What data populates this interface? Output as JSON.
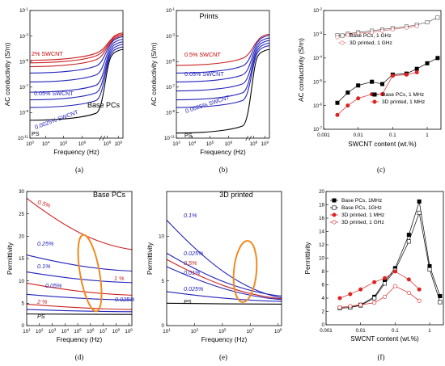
{
  "chart_data": [
    {
      "panel": "(a)",
      "type": "line",
      "title": "Base PCs",
      "xlabel": "Frequency (Hz)",
      "ylabel": "AC conductivity (S/m)",
      "x_ticks": [
        "10^3",
        "10^4",
        "10^5",
        "10^6",
        "10^8",
        "10^9"
      ],
      "y_ticks": [
        "10^-11",
        "10^-9",
        "10^-7",
        "10^-5",
        "10^-3",
        "10^-1"
      ],
      "annotations": [
        {
          "text": "2% SWCNT",
          "color": "#cc0000"
        },
        {
          "text": "0.05% SWCNT",
          "color": "#2222bb"
        },
        {
          "text": "0.0025% SWCNT",
          "color": "#2222bb"
        },
        {
          "text": "PS",
          "color": "#000000"
        }
      ],
      "series": [
        {
          "color": "#cc2222",
          "low": -4.9,
          "high": -2.8
        },
        {
          "color": "#cc2222",
          "low": -5.1,
          "high": -2.9
        },
        {
          "color": "#cc2222",
          "low": -5.4,
          "high": -3.0
        },
        {
          "color": "#2222bb",
          "low": -5.9,
          "high": -3.1
        },
        {
          "color": "#2222bb",
          "low": -6.6,
          "high": -3.3
        },
        {
          "color": "#2222bb",
          "low": -7.4,
          "high": -3.5
        },
        {
          "color": "#2222bb",
          "low": -8.0,
          "high": -3.7
        },
        {
          "color": "#2222bb",
          "low": -8.6,
          "high": -3.9
        },
        {
          "color": "#000000",
          "low": -9.6,
          "high": -4.1
        }
      ]
    },
    {
      "panel": "(b)",
      "type": "line",
      "title": "Prints",
      "xlabel": "Frequency (Hz)",
      "ylabel": "AC conductivity (S/m)",
      "x_ticks": [
        "10^3",
        "10^4",
        "10^5",
        "10^6",
        "10^8",
        "10^9"
      ],
      "y_ticks": [
        "10^-11",
        "10^-9",
        "10^-7",
        "10^-5",
        "10^-3",
        "10^-1"
      ],
      "annotations": [
        {
          "text": "0.5% SWCNT",
          "color": "#cc0000"
        },
        {
          "text": "0.05% SWCNT",
          "color": "#2222bb"
        },
        {
          "text": "0.0025% SWCNT",
          "color": "#2222bb"
        },
        {
          "text": "PS",
          "color": "#000000"
        }
      ],
      "series": [
        {
          "color": "#cc2222",
          "low": -5.3,
          "high": -2.9
        },
        {
          "color": "#2222bb",
          "low": -5.9,
          "high": -3.0
        },
        {
          "color": "#2222bb",
          "low": -6.6,
          "high": -3.2
        },
        {
          "color": "#2222bb",
          "low": -7.3,
          "high": -3.4
        },
        {
          "color": "#2222bb",
          "low": -8.0,
          "high": -3.6
        },
        {
          "color": "#2222bb",
          "low": -8.6,
          "high": -3.8
        },
        {
          "color": "#000000",
          "low": -10.6,
          "high": -4.1
        }
      ]
    },
    {
      "panel": "(c)",
      "type": "scatter",
      "xlabel": "SWCNT content (wt.%)",
      "ylabel": "AC conductivity (S/m)",
      "x_scale": "log",
      "y_scale": "log",
      "x_ticks": [
        "0.001",
        "0.01",
        "0.1",
        "1"
      ],
      "y_ticks": [
        "10^-7",
        "10^-6",
        "10^-5",
        "10^-4",
        "10^-3",
        "10^-2"
      ],
      "series": [
        {
          "name": "Base PCs, 1 GHz",
          "color": "#555555",
          "marker": "square-open",
          "x": [
            0.0025,
            0.005,
            0.01,
            0.025,
            0.05,
            0.1,
            0.25,
            0.5,
            1,
            2
          ],
          "y": [
            0.0009,
            0.00105,
            0.0012,
            0.0014,
            0.0016,
            0.0018,
            0.0021,
            0.0025,
            0.0032,
            0.005
          ]
        },
        {
          "name": "3D printed, 1 GHz",
          "color": "#e06666",
          "marker": "circle-open",
          "x": [
            0.0025,
            0.005,
            0.01,
            0.025,
            0.05,
            0.1,
            0.25,
            0.5
          ],
          "y": [
            0.00075,
            0.00095,
            0.0011,
            0.0012,
            0.0014,
            0.0016,
            0.0019,
            0.0022
          ]
        },
        {
          "name": "Base PCs, 1 MHz",
          "color": "#000000",
          "marker": "square",
          "x": [
            0.0025,
            0.005,
            0.01,
            0.025,
            0.05,
            0.1,
            0.25,
            0.5,
            1,
            2
          ],
          "y": [
            1.3e-06,
            3.5e-06,
            7e-06,
            1e-05,
            8e-06,
            2e-05,
            2.2e-05,
            3.5e-05,
            6e-05,
            0.0001
          ]
        },
        {
          "name": "3D printed, 1 MHz",
          "color": "#dd2222",
          "marker": "circle",
          "x": [
            0.0025,
            0.005,
            0.01,
            0.025,
            0.05,
            0.1,
            0.25,
            0.5
          ],
          "y": [
            4e-07,
            1e-06,
            2e-06,
            3e-06,
            3e-06,
            1.8e-05,
            2e-05,
            2.5e-05
          ]
        }
      ]
    },
    {
      "panel": "(d)",
      "type": "line",
      "title": "Base PCs",
      "xlabel": "Frequency (Hz)",
      "ylabel": "Permittivity",
      "ylim": [
        0,
        30
      ],
      "x_ticks": [
        "10^1",
        "10^2",
        "10^3",
        "10^4",
        "10^5",
        "10^6",
        "10^7",
        "10^8",
        "10^9"
      ],
      "y_ticks": [
        "0",
        "5",
        "10",
        "15",
        "20",
        "25",
        "30"
      ],
      "annotations": [
        {
          "text": "0.5%",
          "color": "#cc2222"
        },
        {
          "text": "0.25%",
          "color": "#2222bb"
        },
        {
          "text": "0.1%",
          "color": "#2222bb"
        },
        {
          "text": "1 %",
          "color": "#cc2222"
        },
        {
          "text": "0.05%",
          "color": "#2222bb"
        },
        {
          "text": "0.025%",
          "color": "#2222bb"
        },
        {
          "text": "2 %",
          "color": "#cc2222"
        },
        {
          "text": "PS",
          "color": "#000000"
        }
      ],
      "series": [
        {
          "color": "#cc2222",
          "start": 28.5,
          "end": 17
        },
        {
          "color": "#2222bb",
          "start": 15.8,
          "end": 12.2
        },
        {
          "color": "#2222bb",
          "start": 12.0,
          "end": 9.6
        },
        {
          "color": "#cc2222",
          "start": 9.5,
          "end": 6.8
        },
        {
          "color": "#2222bb",
          "start": 7.0,
          "end": 5.7
        },
        {
          "color": "#cc2222",
          "start": 4.8,
          "end": 3.6
        },
        {
          "color": "#2222bb",
          "start": 3.6,
          "end": 3.1
        },
        {
          "color": "#000000",
          "start": 2.6,
          "end": 2.5
        }
      ]
    },
    {
      "panel": "(e)",
      "type": "line",
      "title": "3D printed",
      "xlabel": "Frequency (Hz)",
      "ylabel": "Permittivity",
      "ylim": [
        0,
        15
      ],
      "x_ticks": [
        "10^1",
        "10^3",
        "10^5",
        "10^7",
        "10^9"
      ],
      "y_ticks": [
        "0",
        "5",
        "10"
      ],
      "annotations": [
        {
          "text": "0.1%",
          "color": "#2222bb"
        },
        {
          "text": "0.025%",
          "color": "#2222bb"
        },
        {
          "text": "0.5%",
          "color": "#cc2222"
        },
        {
          "text": "0.01%",
          "color": "#2222bb"
        },
        {
          "text": "0.025%",
          "color": "#2222bb"
        },
        {
          "text": "PS",
          "color": "#000000"
        }
      ],
      "series": [
        {
          "color": "#2222bb",
          "start": 11.8,
          "end": 3.1
        },
        {
          "color": "#2222bb",
          "start": 8.1,
          "end": 3.3
        },
        {
          "color": "#cc2222",
          "start": 7.4,
          "end": 3.0
        },
        {
          "color": "#2222bb",
          "start": 6.6,
          "end": 2.9
        },
        {
          "color": "#2222bb",
          "start": 3.8,
          "end": 2.7
        },
        {
          "color": "#000000",
          "start": 2.5,
          "end": 2.4
        }
      ]
    },
    {
      "panel": "(f)",
      "type": "line",
      "xlabel": "SWCNT content (wt.%)",
      "ylabel": "Permittivity",
      "x_scale": "log",
      "ylim": [
        0,
        20
      ],
      "x_ticks": [
        "0.001",
        "0.01",
        "0.1",
        "1"
      ],
      "y_ticks": [
        "0",
        "2",
        "4",
        "6",
        "8",
        "10",
        "12",
        "14",
        "16",
        "18",
        "20"
      ],
      "legend_position": "top-left",
      "series": [
        {
          "name": "Base PCs, 1MHz",
          "color": "#000000",
          "marker": "square",
          "x": [
            0.0025,
            0.005,
            0.01,
            0.025,
            0.05,
            0.1,
            0.25,
            0.5,
            1,
            2
          ],
          "y": [
            2.5,
            2.6,
            3.0,
            4.2,
            6.5,
            8.5,
            13.5,
            18.5,
            8.8,
            4.3
          ]
        },
        {
          "name": "Base PCs, 1GHz",
          "color": "#000000",
          "marker": "square-open",
          "x": [
            0.0025,
            0.005,
            0.01,
            0.025,
            0.05,
            0.1,
            0.25,
            0.5,
            1,
            2
          ],
          "y": [
            2.5,
            2.6,
            2.9,
            4.0,
            6.2,
            8.2,
            12.5,
            16.8,
            8.3,
            3.4
          ]
        },
        {
          "name": "3D printed, 1 MHz",
          "color": "#dd2222",
          "marker": "circle",
          "x": [
            0.0025,
            0.005,
            0.01,
            0.025,
            0.05,
            0.1,
            0.25,
            0.5
          ],
          "y": [
            4.0,
            4.6,
            5.3,
            6.4,
            7.0,
            8.0,
            6.8,
            5.3
          ]
        },
        {
          "name": "3D printed, 1 GHz",
          "color": "#dd2222",
          "marker": "circle-open",
          "x": [
            0.0025,
            0.005,
            0.01,
            0.025,
            0.05,
            0.1,
            0.25,
            0.5
          ],
          "y": [
            2.6,
            2.8,
            3.0,
            3.3,
            4.2,
            5.8,
            4.8,
            3.6
          ]
        }
      ]
    }
  ]
}
